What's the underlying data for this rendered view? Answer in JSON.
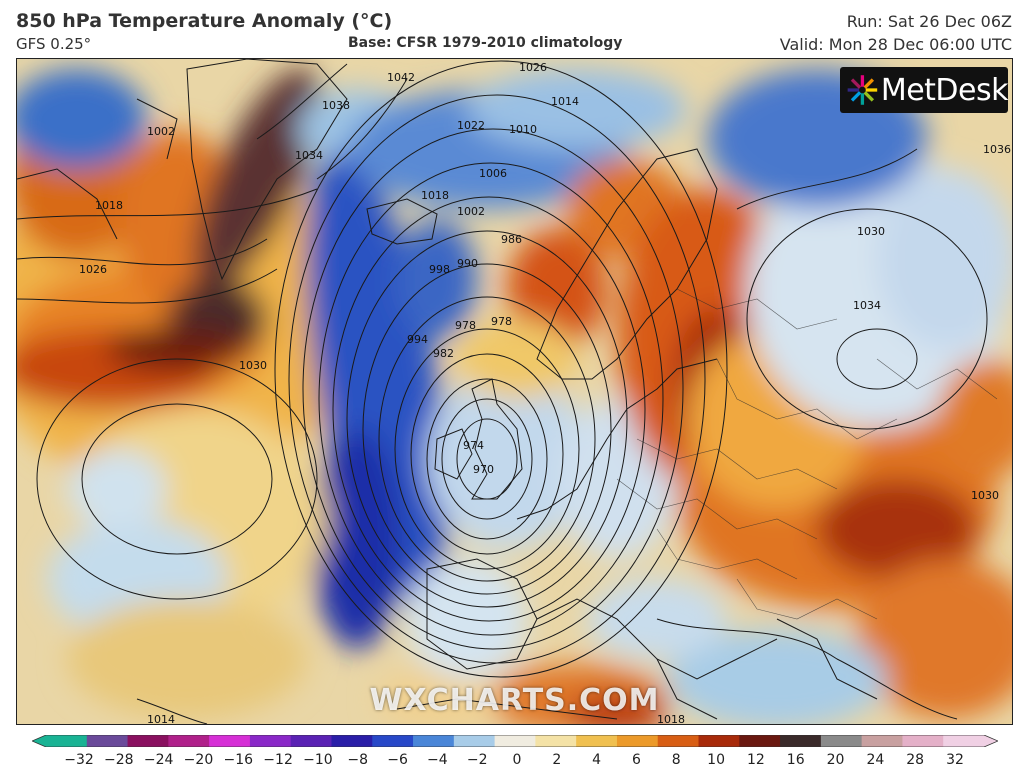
{
  "header": {
    "title": "850 hPa Temperature Anomaly (°C)",
    "model": "GFS 0.25°",
    "base": "Base: CFSR 1979-2010 climatology",
    "run": "Run: Sat 26 Dec 06Z",
    "valid": "Valid: Mon 28 Dec 06:00 UTC"
  },
  "brand": {
    "name": "MetDesk"
  },
  "watermark": "WXCHARTS.COM",
  "colorbar": {
    "ticks": [
      "−32",
      "−28",
      "−24",
      "−20",
      "−16",
      "−12",
      "−10",
      "−8",
      "−6",
      "−4",
      "−2",
      "0",
      "2",
      "4",
      "6",
      "8",
      "10",
      "12",
      "16",
      "20",
      "24",
      "28",
      "32"
    ],
    "colors": [
      "#19b394",
      "#6a4a9a",
      "#8a1060",
      "#b0208a",
      "#d62fd6",
      "#8a28c8",
      "#5a22b4",
      "#2a1ea8",
      "#2848c8",
      "#4a86d8",
      "#a8cce8",
      "#f0ece0",
      "#f4e2a6",
      "#f0c050",
      "#ec9a2a",
      "#d85e14",
      "#a82a0a",
      "#6a1810",
      "#3a2a2a",
      "#8a8a8a",
      "#c8a0a0",
      "#e4b0c8",
      "#f0d0e4"
    ]
  },
  "isobar_labels": [
    "1002",
    "1018",
    "1026",
    "1034",
    "1038",
    "1042",
    "1026",
    "1014",
    "1022",
    "1018",
    "1010",
    "1006",
    "1002",
    "998",
    "994",
    "990",
    "986",
    "982",
    "978",
    "978",
    "974",
    "970",
    "1030",
    "1030",
    "1034",
    "1036",
    "1030",
    "1014",
    "1018"
  ]
}
